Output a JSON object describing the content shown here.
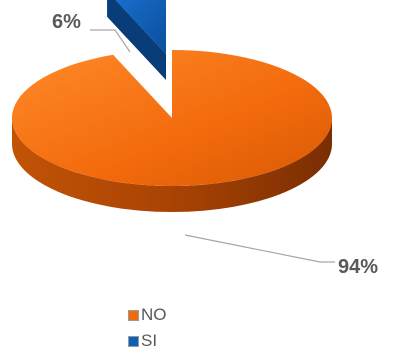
{
  "chart_data": {
    "type": "pie",
    "categories": [
      "NO",
      "SI"
    ],
    "values": [
      94,
      6
    ],
    "labels": [
      "94%",
      "6%"
    ],
    "colors": [
      "#f26a0c",
      "#0f5fb8"
    ],
    "legend": "bottom",
    "exploded": "SI"
  }
}
